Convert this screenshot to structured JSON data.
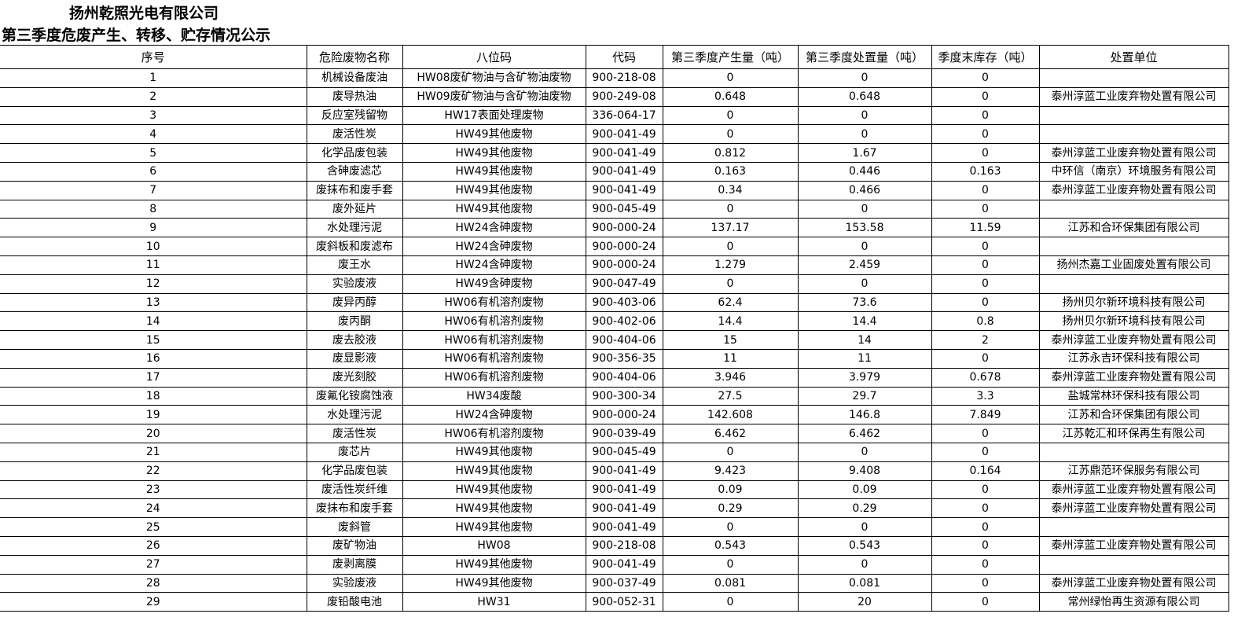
{
  "title": "扬州乾照光电有限公司",
  "subtitle": "第三季度危废产生、转移、贮存情况公示",
  "headers": [
    "序号",
    "危险废物名称",
    "八位码",
    "代码",
    "第三季度产生量（吨）",
    "第三季度处置量（吨）",
    "季度末库存（吨）",
    "处置单位"
  ],
  "rows": [
    [
      "1",
      "机械设备废油",
      "HW08废矿物油与含矿物油废物",
      "900-218-08",
      "0",
      "0",
      "0",
      ""
    ],
    [
      "2",
      "废导热油",
      "HW09废矿物油与含矿物油废物",
      "900-249-08",
      "0.648",
      "0.648",
      "0",
      "泰州淳蓝工业废弃物处置有限公司"
    ],
    [
      "3",
      "反应室残留物",
      "HW17表面处理废物",
      "336-064-17",
      "0",
      "0",
      "0",
      ""
    ],
    [
      "4",
      "废活性炭",
      "HW49其他废物",
      "900-041-49",
      "0",
      "0",
      "0",
      ""
    ],
    [
      "5",
      "化学品废包装",
      "HW49其他废物",
      "900-041-49",
      "0.812",
      "1.67",
      "0",
      "泰州淳蓝工业废弃物处置有限公司"
    ],
    [
      "6",
      "含砷废滤芯",
      "HW49其他废物",
      "900-041-49",
      "0.163",
      "0.446",
      "0.163",
      "中环信（南京）环境服务有限公司"
    ],
    [
      "7",
      "废抹布和废手套",
      "HW49其他废物",
      "900-041-49",
      "0.34",
      "0.466",
      "0",
      "泰州淳蓝工业废弃物处置有限公司"
    ],
    [
      "8",
      "废外延片",
      "HW49其他废物",
      "900-045-49",
      "0",
      "0",
      "0",
      ""
    ],
    [
      "9",
      "水处理污泥",
      "HW24含砷废物",
      "900-000-24",
      "137.17",
      "153.58",
      "11.59",
      "江苏和合环保集团有限公司"
    ],
    [
      "10",
      "废斜板和废滤布",
      "HW24含砷废物",
      "900-000-24",
      "0",
      "0",
      "0",
      ""
    ],
    [
      "11",
      "废王水",
      "HW24含砷废物",
      "900-000-24",
      "1.279",
      "2.459",
      "0",
      "扬州杰嘉工业固废处置有限公司"
    ],
    [
      "12",
      "实验废液",
      "HW49含砷废物",
      "900-047-49",
      "0",
      "0",
      "0",
      ""
    ],
    [
      "13",
      "废异丙醇",
      "HW06有机溶剂废物",
      "900-403-06",
      "62.4",
      "73.6",
      "0",
      "扬州贝尔新环境科技有限公司"
    ],
    [
      "14",
      "废丙酮",
      "HW06有机溶剂废物",
      "900-402-06",
      "14.4",
      "14.4",
      "0.8",
      "扬州贝尔新环境科技有限公司"
    ],
    [
      "15",
      "废去胶液",
      "HW06有机溶剂废物",
      "900-404-06",
      "15",
      "14",
      "2",
      "泰州淳蓝工业废弃物处置有限公司"
    ],
    [
      "16",
      "废显影液",
      "HW06有机溶剂废物",
      "900-356-35",
      "11",
      "11",
      "0",
      "江苏永吉环保科技有限公司"
    ],
    [
      "17",
      "废光刻胶",
      "HW06有机溶剂废物",
      "900-404-06",
      "3.946",
      "3.979",
      "0.678",
      "泰州淳蓝工业废弃物处置有限公司"
    ],
    [
      "18",
      "废氟化铵腐蚀液",
      "HW34废酸",
      "900-300-34",
      "27.5",
      "29.7",
      "3.3",
      "盐城常林环保科技有限公司"
    ],
    [
      "19",
      "水处理污泥",
      "HW24含砷废物",
      "900-000-24",
      "142.608",
      "146.8",
      "7.849",
      "江苏和合环保集团有限公司"
    ],
    [
      "20",
      "废活性炭",
      "HW06有机溶剂废物",
      "900-039-49",
      "6.462",
      "6.462",
      "0",
      "江苏乾汇和环保再生有限公司"
    ],
    [
      "21",
      "废芯片",
      "HW49其他废物",
      "900-045-49",
      "0",
      "0",
      "0",
      ""
    ],
    [
      "22",
      "化学品废包装",
      "HW49其他废物",
      "900-041-49",
      "9.423",
      "9.408",
      "0.164",
      "江苏鼎范环保服务有限公司"
    ],
    [
      "23",
      "废活性炭纤维",
      "HW49其他废物",
      "900-041-49",
      "0.09",
      "0.09",
      "0",
      "泰州淳蓝工业废弃物处置有限公司"
    ],
    [
      "24",
      "废抹布和废手套",
      "HW49其他废物",
      "900-041-49",
      "0.29",
      "0.29",
      "0",
      "泰州淳蓝工业废弃物处置有限公司"
    ],
    [
      "25",
      "废斜管",
      "HW49其他废物",
      "900-041-49",
      "0",
      "0",
      "0",
      ""
    ],
    [
      "26",
      "废矿物油",
      "HW08",
      "900-218-08",
      "0.543",
      "0.543",
      "0",
      "泰州淳蓝工业废弃物处置有限公司"
    ],
    [
      "27",
      "废剥离膜",
      "HW49其他废物",
      "900-041-49",
      "0",
      "0",
      "0",
      ""
    ],
    [
      "28",
      "实验废液",
      "HW49其他废物",
      "900-037-49",
      "0.081",
      "0.081",
      "0",
      "泰州淳蓝工业废弃物处置有限公司"
    ],
    [
      "29",
      "废铅酸电池",
      "HW31",
      "900-052-31",
      "0",
      "20",
      "0",
      "常州绿怡再生资源有限公司"
    ]
  ]
}
